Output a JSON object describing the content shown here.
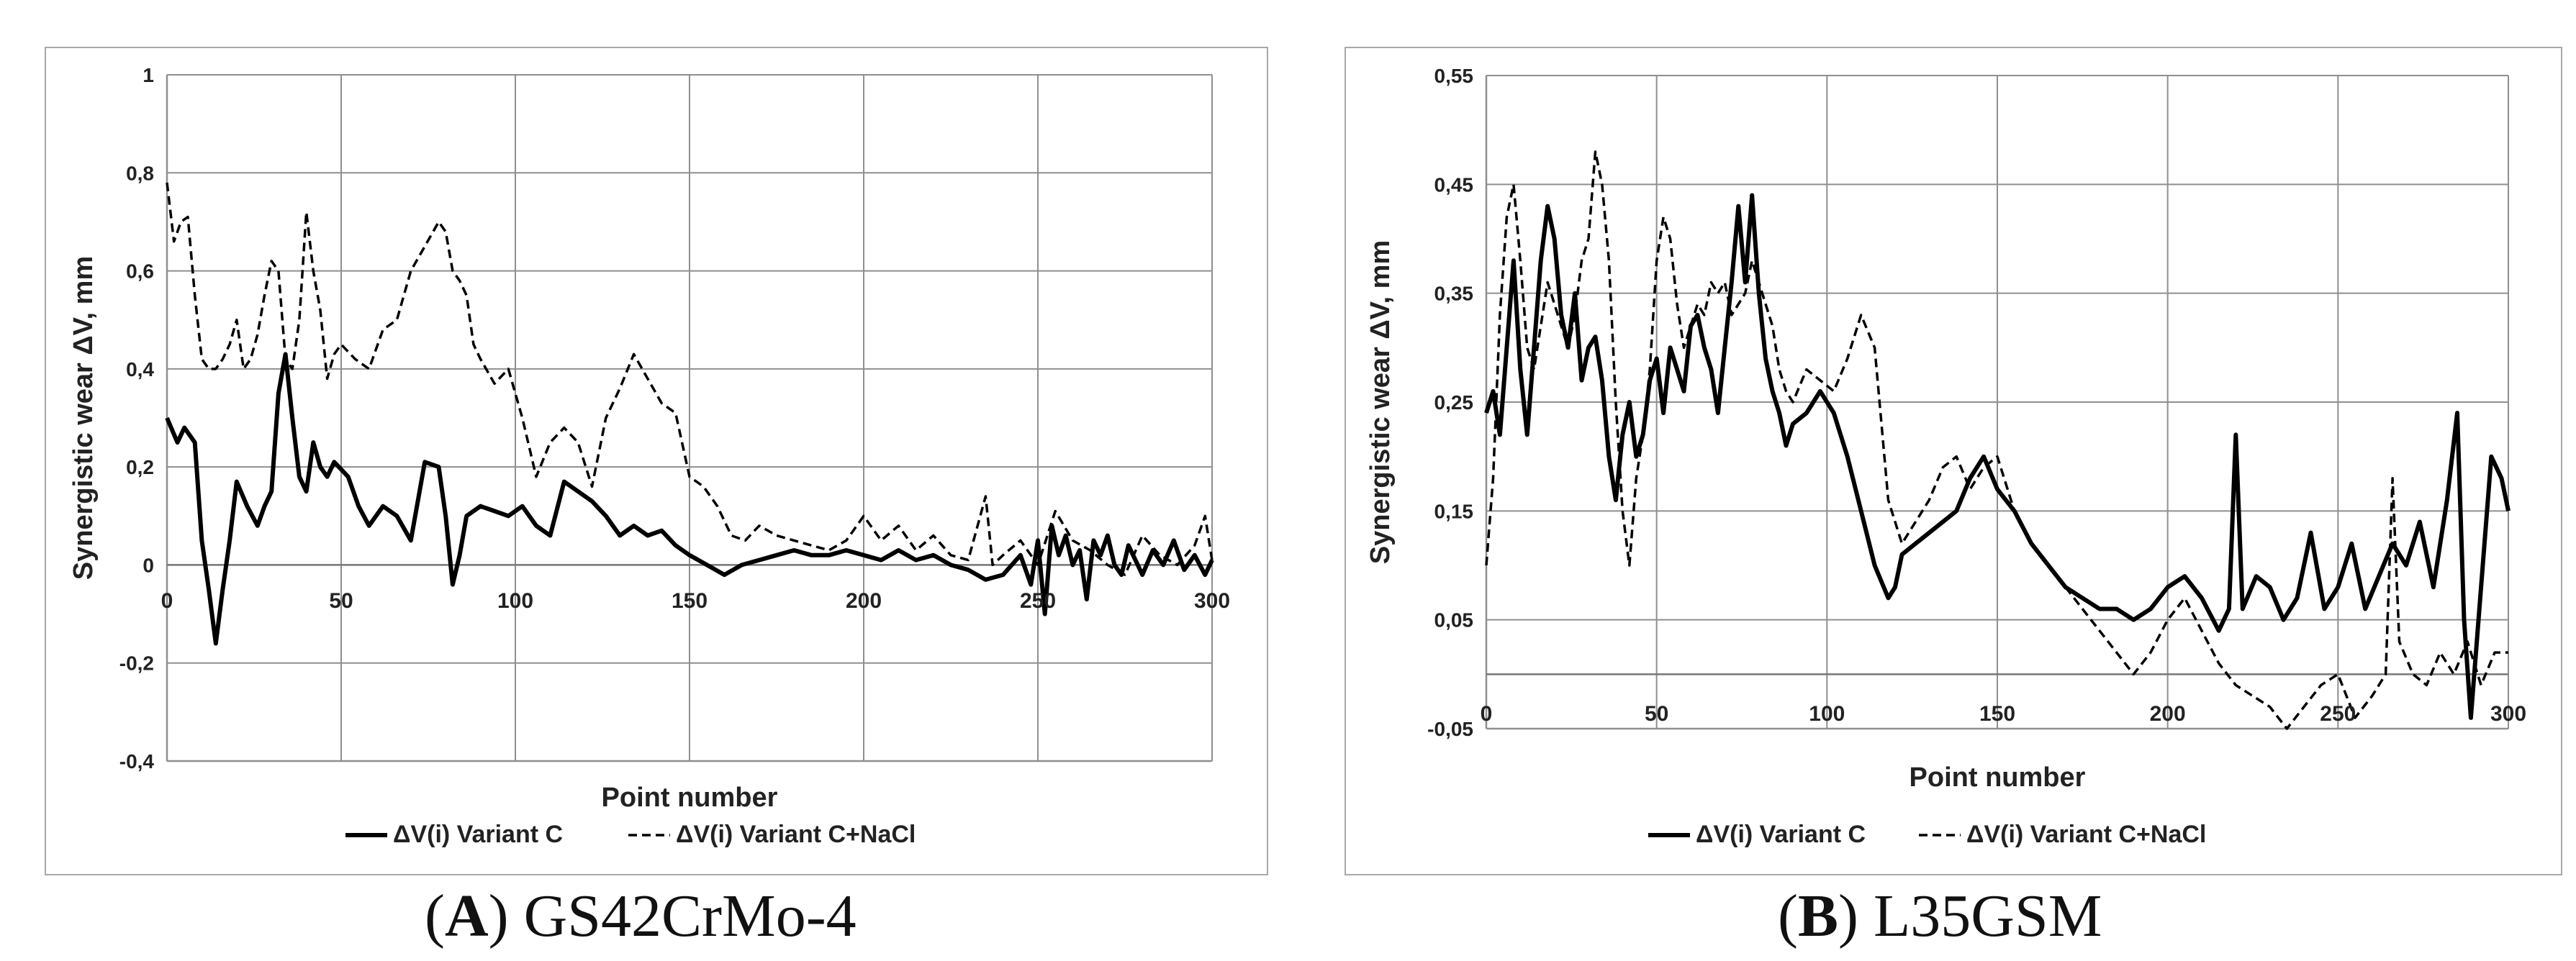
{
  "chart_data": [
    {
      "type": "line",
      "caption_letter": "A",
      "caption_text": "GS42CrMo-4",
      "xlabel": "Point number",
      "ylabel": "Synergistic  wear ΔV, mm",
      "xlim": [
        0,
        300
      ],
      "ylim": [
        -0.4,
        1
      ],
      "xticks": [
        0,
        50,
        100,
        150,
        200,
        250,
        300
      ],
      "xtick_labels": [
        "0",
        "50",
        "100",
        "150",
        "200",
        "250",
        "300"
      ],
      "yticks": [
        -0.4,
        -0.2,
        0,
        0.2,
        0.4,
        0.6,
        0.8,
        1
      ],
      "ytick_labels": [
        "-0,4",
        "-0,2",
        "0",
        "0,2",
        "0,4",
        "0,6",
        "0,8",
        "1"
      ],
      "grid": true,
      "legend_position": "bottom",
      "series": [
        {
          "name": "ΔV(i) Variant C",
          "style": "solid",
          "color": "#000000",
          "x": [
            0,
            3,
            5,
            8,
            10,
            12,
            14,
            16,
            18,
            20,
            23,
            26,
            28,
            30,
            32,
            34,
            36,
            38,
            40,
            42,
            44,
            46,
            48,
            52,
            55,
            58,
            62,
            66,
            70,
            74,
            78,
            80,
            82,
            84,
            86,
            90,
            94,
            98,
            102,
            106,
            110,
            114,
            118,
            122,
            126,
            130,
            134,
            138,
            142,
            146,
            150,
            155,
            160,
            165,
            170,
            175,
            180,
            185,
            190,
            195,
            200,
            205,
            210,
            215,
            220,
            225,
            230,
            235,
            240,
            245,
            248,
            250,
            252,
            254,
            256,
            258,
            260,
            262,
            264,
            266,
            268,
            270,
            272,
            274,
            276,
            278,
            280,
            283,
            286,
            289,
            292,
            295,
            298,
            300
          ],
          "y": [
            0.3,
            0.25,
            0.28,
            0.25,
            0.05,
            -0.05,
            -0.16,
            -0.05,
            0.05,
            0.17,
            0.12,
            0.08,
            0.12,
            0.15,
            0.35,
            0.43,
            0.3,
            0.18,
            0.15,
            0.25,
            0.2,
            0.18,
            0.21,
            0.18,
            0.12,
            0.08,
            0.12,
            0.1,
            0.05,
            0.21,
            0.2,
            0.1,
            -0.04,
            0.02,
            0.1,
            0.12,
            0.11,
            0.1,
            0.12,
            0.08,
            0.06,
            0.17,
            0.15,
            0.13,
            0.1,
            0.06,
            0.08,
            0.06,
            0.07,
            0.04,
            0.02,
            0.0,
            -0.02,
            0.0,
            0.01,
            0.02,
            0.03,
            0.02,
            0.02,
            0.03,
            0.02,
            0.01,
            0.03,
            0.01,
            0.02,
            0.0,
            -0.01,
            -0.03,
            -0.02,
            0.02,
            -0.04,
            0.05,
            -0.1,
            0.08,
            0.02,
            0.06,
            0.0,
            0.03,
            -0.07,
            0.05,
            0.02,
            0.06,
            0.0,
            -0.02,
            0.04,
            0.01,
            -0.02,
            0.03,
            0.0,
            0.05,
            -0.01,
            0.02,
            -0.02,
            0.01
          ]
        },
        {
          "name": "ΔV(i) Variant C+NaCl",
          "style": "dashed",
          "color": "#000000",
          "x": [
            0,
            2,
            4,
            6,
            8,
            10,
            12,
            14,
            16,
            18,
            20,
            22,
            24,
            26,
            28,
            30,
            32,
            34,
            36,
            38,
            40,
            42,
            44,
            46,
            48,
            50,
            54,
            58,
            62,
            66,
            70,
            74,
            78,
            80,
            82,
            84,
            86,
            88,
            90,
            94,
            98,
            102,
            106,
            110,
            114,
            118,
            122,
            126,
            130,
            134,
            138,
            142,
            146,
            150,
            154,
            158,
            162,
            166,
            170,
            175,
            180,
            185,
            190,
            195,
            200,
            205,
            210,
            215,
            220,
            225,
            230,
            235,
            237,
            240,
            245,
            250,
            255,
            260,
            265,
            270,
            275,
            280,
            285,
            290,
            295,
            298,
            300
          ],
          "y": [
            0.78,
            0.66,
            0.7,
            0.71,
            0.55,
            0.42,
            0.4,
            0.4,
            0.42,
            0.45,
            0.5,
            0.4,
            0.42,
            0.47,
            0.55,
            0.62,
            0.6,
            0.42,
            0.4,
            0.5,
            0.72,
            0.6,
            0.52,
            0.38,
            0.43,
            0.45,
            0.42,
            0.4,
            0.48,
            0.5,
            0.6,
            0.65,
            0.7,
            0.68,
            0.6,
            0.58,
            0.55,
            0.45,
            0.42,
            0.37,
            0.4,
            0.3,
            0.18,
            0.25,
            0.28,
            0.25,
            0.16,
            0.3,
            0.36,
            0.43,
            0.38,
            0.33,
            0.31,
            0.18,
            0.16,
            0.12,
            0.06,
            0.05,
            0.08,
            0.06,
            0.05,
            0.04,
            0.03,
            0.05,
            0.1,
            0.05,
            0.08,
            0.03,
            0.06,
            0.02,
            0.01,
            0.14,
            0.0,
            0.02,
            0.05,
            0.0,
            0.11,
            0.05,
            0.03,
            0.0,
            -0.02,
            0.06,
            0.02,
            0.0,
            0.04,
            0.1,
            0.01
          ]
        }
      ]
    },
    {
      "type": "line",
      "caption_letter": "B",
      "caption_text": "L35GSM",
      "xlabel": "Point number",
      "ylabel": "Synergistic  wear ΔV, mm",
      "xlim": [
        0,
        300
      ],
      "ylim": [
        -0.05,
        0.55
      ],
      "xticks": [
        0,
        50,
        100,
        150,
        200,
        250,
        300
      ],
      "xtick_labels": [
        "0",
        "50",
        "100",
        "150",
        "200",
        "250",
        "300"
      ],
      "yticks": [
        -0.05,
        0.05,
        0.15,
        0.25,
        0.35,
        0.45,
        0.55
      ],
      "ytick_labels": [
        "-0,05",
        "0,05",
        "0,15",
        "0,25",
        "0,35",
        "0,45",
        "0,55"
      ],
      "grid": true,
      "legend_position": "bottom",
      "series": [
        {
          "name": "ΔV(i) Variant C",
          "style": "solid",
          "color": "#000000",
          "x": [
            0,
            2,
            4,
            6,
            8,
            10,
            12,
            14,
            16,
            18,
            20,
            22,
            24,
            26,
            28,
            30,
            32,
            34,
            36,
            38,
            40,
            42,
            44,
            46,
            48,
            50,
            52,
            54,
            56,
            58,
            60,
            62,
            64,
            66,
            68,
            70,
            72,
            74,
            76,
            78,
            80,
            82,
            84,
            86,
            88,
            90,
            94,
            98,
            102,
            106,
            110,
            114,
            118,
            120,
            122,
            126,
            130,
            134,
            138,
            142,
            146,
            150,
            155,
            160,
            165,
            170,
            175,
            180,
            185,
            190,
            195,
            200,
            205,
            210,
            215,
            218,
            220,
            222,
            226,
            230,
            234,
            238,
            242,
            246,
            250,
            254,
            258,
            262,
            266,
            270,
            274,
            278,
            282,
            285,
            287,
            289,
            292,
            295,
            298,
            300
          ],
          "y": [
            0.24,
            0.26,
            0.22,
            0.3,
            0.38,
            0.28,
            0.22,
            0.3,
            0.38,
            0.43,
            0.4,
            0.33,
            0.3,
            0.35,
            0.27,
            0.3,
            0.31,
            0.27,
            0.2,
            0.16,
            0.22,
            0.25,
            0.2,
            0.22,
            0.27,
            0.29,
            0.24,
            0.3,
            0.28,
            0.26,
            0.32,
            0.33,
            0.3,
            0.28,
            0.24,
            0.3,
            0.36,
            0.43,
            0.36,
            0.44,
            0.35,
            0.29,
            0.26,
            0.24,
            0.21,
            0.23,
            0.24,
            0.26,
            0.24,
            0.2,
            0.15,
            0.1,
            0.07,
            0.08,
            0.11,
            0.12,
            0.13,
            0.14,
            0.15,
            0.18,
            0.2,
            0.17,
            0.15,
            0.12,
            0.1,
            0.08,
            0.07,
            0.06,
            0.06,
            0.05,
            0.06,
            0.08,
            0.09,
            0.07,
            0.04,
            0.06,
            0.22,
            0.06,
            0.09,
            0.08,
            0.05,
            0.07,
            0.13,
            0.06,
            0.08,
            0.12,
            0.06,
            0.09,
            0.12,
            0.1,
            0.14,
            0.08,
            0.16,
            0.24,
            0.05,
            -0.04,
            0.08,
            0.2,
            0.18,
            0.15
          ]
        },
        {
          "name": "ΔV(i) Variant C+NaCl",
          "style": "dashed",
          "color": "#000000",
          "x": [
            0,
            2,
            4,
            6,
            8,
            10,
            12,
            14,
            16,
            18,
            20,
            22,
            24,
            26,
            28,
            30,
            32,
            34,
            36,
            38,
            40,
            42,
            44,
            46,
            48,
            50,
            52,
            54,
            56,
            58,
            60,
            62,
            64,
            66,
            68,
            70,
            72,
            74,
            76,
            78,
            80,
            82,
            84,
            86,
            88,
            90,
            94,
            98,
            102,
            106,
            110,
            114,
            118,
            122,
            126,
            130,
            134,
            138,
            142,
            146,
            150,
            155,
            160,
            165,
            170,
            175,
            180,
            185,
            190,
            195,
            200,
            205,
            210,
            215,
            220,
            225,
            230,
            235,
            240,
            245,
            250,
            255,
            260,
            264,
            266,
            268,
            272,
            276,
            280,
            284,
            288,
            292,
            296,
            300
          ],
          "y": [
            0.1,
            0.18,
            0.33,
            0.42,
            0.45,
            0.38,
            0.3,
            0.28,
            0.32,
            0.36,
            0.34,
            0.32,
            0.3,
            0.33,
            0.38,
            0.4,
            0.48,
            0.45,
            0.38,
            0.25,
            0.15,
            0.1,
            0.18,
            0.22,
            0.28,
            0.38,
            0.42,
            0.4,
            0.34,
            0.3,
            0.32,
            0.34,
            0.33,
            0.36,
            0.35,
            0.36,
            0.33,
            0.34,
            0.35,
            0.38,
            0.36,
            0.34,
            0.32,
            0.28,
            0.26,
            0.25,
            0.28,
            0.27,
            0.26,
            0.29,
            0.33,
            0.3,
            0.16,
            0.12,
            0.14,
            0.16,
            0.19,
            0.2,
            0.17,
            0.19,
            0.2,
            0.15,
            0.12,
            0.1,
            0.08,
            0.06,
            0.04,
            0.02,
            0.0,
            0.02,
            0.05,
            0.07,
            0.04,
            0.01,
            -0.01,
            -0.02,
            -0.03,
            -0.05,
            -0.03,
            -0.01,
            0.0,
            -0.04,
            -0.02,
            0.0,
            0.18,
            0.03,
            0.0,
            -0.01,
            0.02,
            0.0,
            0.03,
            -0.01,
            0.02,
            0.02
          ]
        }
      ]
    }
  ]
}
